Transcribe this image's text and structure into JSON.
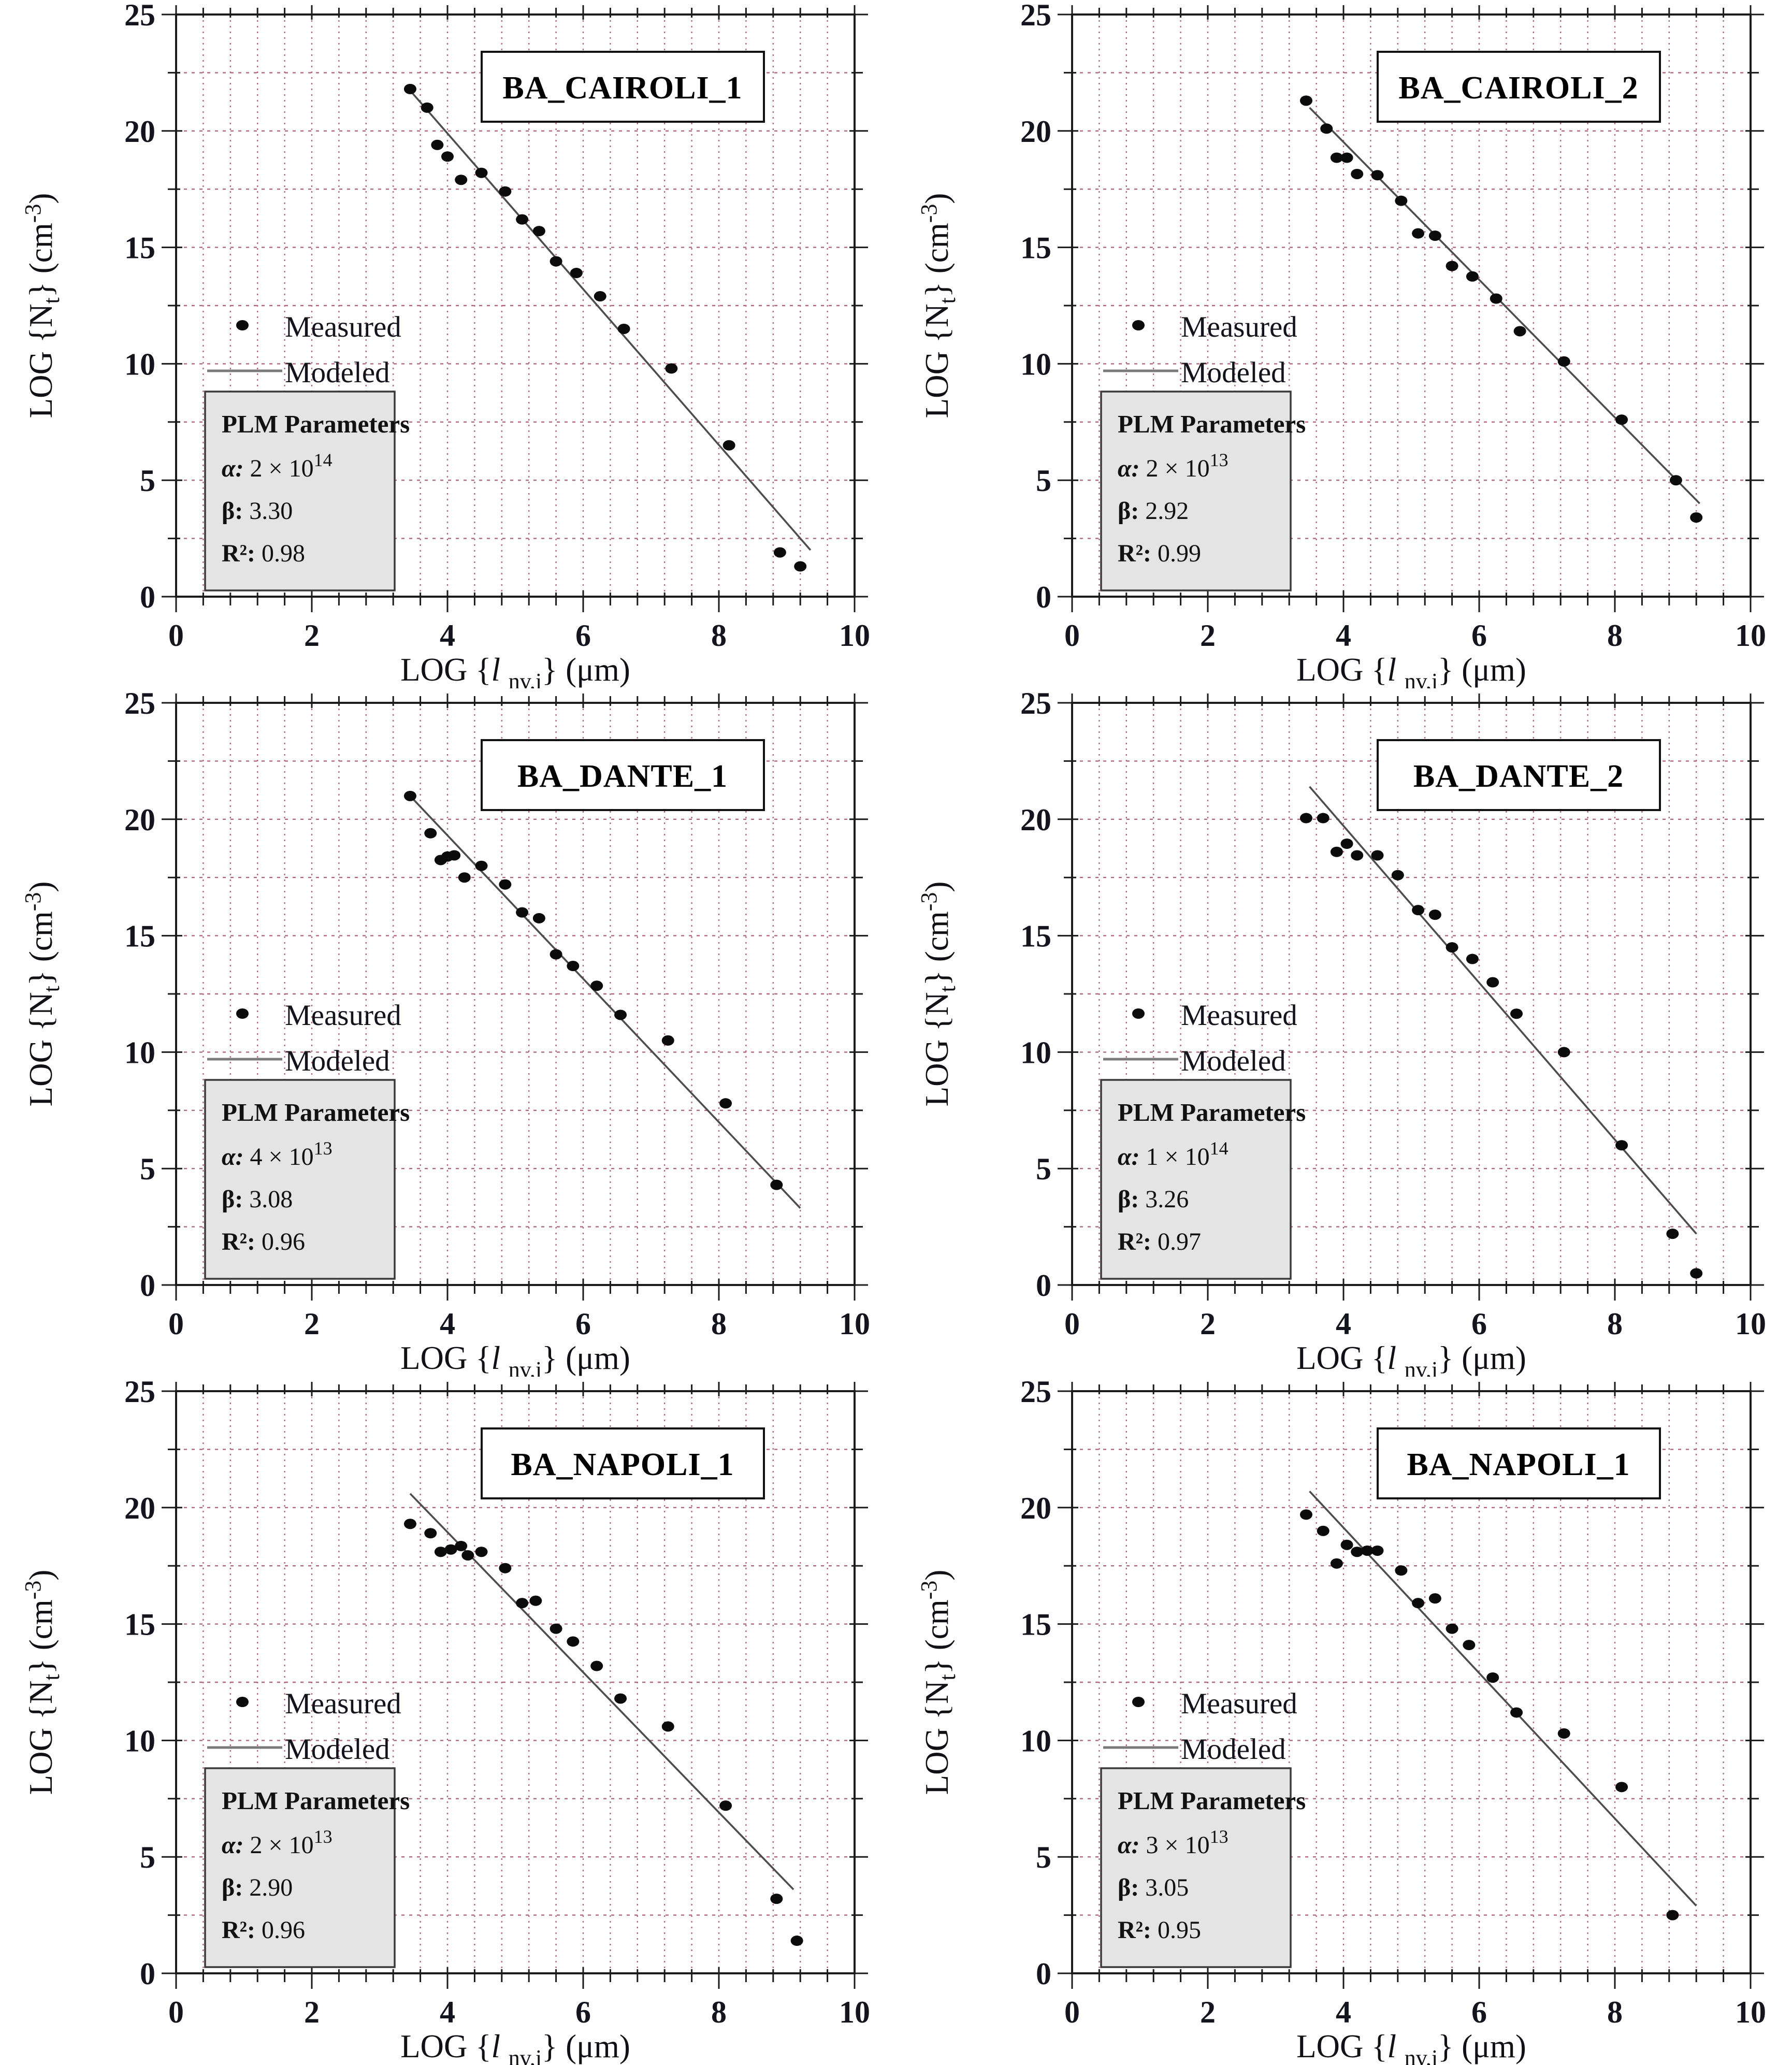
{
  "figure": {
    "background": "#ffffff",
    "rows": 3,
    "cols": 2
  },
  "axes": {
    "x": {
      "min": 0,
      "max": 10,
      "major_ticks": [
        0,
        2,
        4,
        6,
        8,
        10
      ],
      "minor_step": 0.4,
      "grid_step": 0.4,
      "label": {
        "pre": "LOG {",
        "var": "l ",
        "sub": "nv,i",
        "post": "}",
        "unit": "   (μm)"
      }
    },
    "y": {
      "min": 0,
      "max": 25,
      "major_ticks": [
        0,
        5,
        10,
        15,
        20,
        25
      ],
      "minor_step": 2.5,
      "grid_step": 2.5,
      "label": {
        "pre": "LOG {N",
        "sub": "t",
        "post": "}",
        "unit_pre": "   (cm",
        "sup": "-3",
        "unit_post": ")"
      }
    },
    "grid_color": "#A34D6D",
    "grid_style": "dotted",
    "axis_color": "#1b1b1b"
  },
  "legend": {
    "measured": "Measured",
    "modeled": "Modeled"
  },
  "plm_header": "PLM Parameters",
  "param_labels": {
    "alpha": "α:",
    "beta": "β:",
    "r2": "R²:"
  },
  "colors": {
    "point": "#0b0b0b",
    "model_line": "#4d4d4d",
    "legend_line": "#7a7a7a",
    "plm_box_fill": "#e4e4e4",
    "plm_box_stroke": "#3a3a3a",
    "title_box_fill": "#ffffff",
    "title_box_stroke": "#111111"
  },
  "chart_data": [
    {
      "type": "scatter",
      "title": "BA_CAIROLI_1",
      "xlabel": "LOG {l nv,i} (μm)",
      "ylabel": "LOG {Nt} (cm⁻³)",
      "xlim": [
        0,
        10
      ],
      "ylim": [
        0,
        25
      ],
      "legend_position": "middle-left",
      "series": [
        {
          "name": "Measured",
          "type": "scatter",
          "points": [
            [
              3.45,
              21.8
            ],
            [
              3.7,
              21.0
            ],
            [
              3.85,
              19.4
            ],
            [
              4.0,
              18.9
            ],
            [
              4.2,
              17.9
            ],
            [
              4.5,
              18.2
            ],
            [
              4.85,
              17.4
            ],
            [
              5.1,
              16.2
            ],
            [
              5.35,
              15.7
            ],
            [
              5.6,
              14.4
            ],
            [
              5.9,
              13.9
            ],
            [
              6.25,
              12.9
            ],
            [
              6.6,
              11.5
            ],
            [
              7.3,
              9.8
            ],
            [
              8.15,
              6.5
            ],
            [
              8.9,
              1.9
            ],
            [
              9.2,
              1.3
            ]
          ]
        },
        {
          "name": "Modeled",
          "type": "line",
          "points": [
            [
              3.4,
              21.9
            ],
            [
              9.35,
              2.0
            ]
          ]
        }
      ],
      "plm": {
        "alpha_coef": " 2 × 10",
        "alpha_exp": "14",
        "beta": " 3.30",
        "r2": " 0.98"
      }
    },
    {
      "type": "scatter",
      "title": "BA_CAIROLI_2",
      "xlabel": "LOG {l nv,i} (μm)",
      "ylabel": "LOG {Nt} (cm⁻³)",
      "xlim": [
        0,
        10
      ],
      "ylim": [
        0,
        25
      ],
      "legend_position": "middle-left",
      "series": [
        {
          "name": "Measured",
          "type": "scatter",
          "points": [
            [
              3.45,
              21.3
            ],
            [
              3.75,
              20.1
            ],
            [
              3.9,
              18.85
            ],
            [
              4.05,
              18.85
            ],
            [
              4.2,
              18.15
            ],
            [
              4.5,
              18.1
            ],
            [
              4.85,
              17.0
            ],
            [
              5.1,
              15.6
            ],
            [
              5.35,
              15.5
            ],
            [
              5.6,
              14.2
            ],
            [
              5.9,
              13.75
            ],
            [
              6.25,
              12.8
            ],
            [
              6.6,
              11.4
            ],
            [
              7.25,
              10.1
            ],
            [
              8.1,
              7.6
            ],
            [
              8.9,
              5.0
            ],
            [
              9.2,
              3.4
            ]
          ]
        },
        {
          "name": "Modeled",
          "type": "line",
          "points": [
            [
              3.5,
              21.0
            ],
            [
              9.25,
              4.0
            ]
          ]
        }
      ],
      "plm": {
        "alpha_coef": " 2 × 10",
        "alpha_exp": "13",
        "beta": " 2.92",
        "r2": " 0.99"
      }
    },
    {
      "type": "scatter",
      "title": "BA_DANTE_1",
      "xlabel": "LOG {l nv,i} (μm)",
      "ylabel": "LOG {Nt} (cm⁻³)",
      "xlim": [
        0,
        10
      ],
      "ylim": [
        0,
        25
      ],
      "legend_position": "middle-left",
      "series": [
        {
          "name": "Measured",
          "type": "scatter",
          "points": [
            [
              3.45,
              21.0
            ],
            [
              3.75,
              19.4
            ],
            [
              3.9,
              18.25
            ],
            [
              4.0,
              18.4
            ],
            [
              4.1,
              18.45
            ],
            [
              4.25,
              17.5
            ],
            [
              4.5,
              18.0
            ],
            [
              4.85,
              17.2
            ],
            [
              5.1,
              16.0
            ],
            [
              5.35,
              15.75
            ],
            [
              5.6,
              14.2
            ],
            [
              5.85,
              13.7
            ],
            [
              6.2,
              12.85
            ],
            [
              6.55,
              11.6
            ],
            [
              7.25,
              10.5
            ],
            [
              8.1,
              7.8
            ],
            [
              8.85,
              4.3
            ]
          ]
        },
        {
          "name": "Modeled",
          "type": "line",
          "points": [
            [
              3.45,
              21.0
            ],
            [
              9.2,
              3.3
            ]
          ]
        }
      ],
      "plm": {
        "alpha_coef": " 4 × 10",
        "alpha_exp": "13",
        "beta": " 3.08",
        "r2": " 0.96"
      }
    },
    {
      "type": "scatter",
      "title": "BA_DANTE_2",
      "xlabel": "LOG {l nv,i} (μm)",
      "ylabel": "LOG {Nt} (cm⁻³)",
      "xlim": [
        0,
        10
      ],
      "ylim": [
        0,
        25
      ],
      "legend_position": "middle-left",
      "series": [
        {
          "name": "Measured",
          "type": "scatter",
          "points": [
            [
              3.45,
              20.05
            ],
            [
              3.7,
              20.05
            ],
            [
              3.9,
              18.6
            ],
            [
              4.05,
              18.95
            ],
            [
              4.2,
              18.45
            ],
            [
              4.5,
              18.45
            ],
            [
              4.8,
              17.6
            ],
            [
              5.1,
              16.1
            ],
            [
              5.35,
              15.9
            ],
            [
              5.6,
              14.5
            ],
            [
              5.9,
              14.0
            ],
            [
              6.2,
              13.0
            ],
            [
              6.55,
              11.65
            ],
            [
              7.25,
              10.0
            ],
            [
              8.1,
              6.0
            ],
            [
              8.85,
              2.2
            ],
            [
              9.2,
              0.5
            ]
          ]
        },
        {
          "name": "Modeled",
          "type": "line",
          "points": [
            [
              3.5,
              21.4
            ],
            [
              9.2,
              2.2
            ]
          ]
        }
      ],
      "plm": {
        "alpha_coef": " 1 × 10",
        "alpha_exp": "14",
        "beta": " 3.26",
        "r2": " 0.97"
      }
    },
    {
      "type": "scatter",
      "title": "BA_NAPOLI_1",
      "xlabel": "LOG {l nv,i} (μm)",
      "ylabel": "LOG {Nt} (cm⁻³)",
      "xlim": [
        0,
        10
      ],
      "ylim": [
        0,
        25
      ],
      "legend_position": "middle-left",
      "series": [
        {
          "name": "Measured",
          "type": "scatter",
          "points": [
            [
              3.45,
              19.3
            ],
            [
              3.75,
              18.9
            ],
            [
              3.9,
              18.1
            ],
            [
              4.05,
              18.2
            ],
            [
              4.2,
              18.35
            ],
            [
              4.3,
              17.95
            ],
            [
              4.5,
              18.1
            ],
            [
              4.85,
              17.4
            ],
            [
              5.1,
              15.9
            ],
            [
              5.3,
              16.0
            ],
            [
              5.6,
              14.8
            ],
            [
              5.85,
              14.25
            ],
            [
              6.2,
              13.2
            ],
            [
              6.55,
              11.8
            ],
            [
              7.25,
              10.6
            ],
            [
              8.1,
              7.2
            ],
            [
              8.85,
              3.2
            ],
            [
              9.15,
              1.4
            ]
          ]
        },
        {
          "name": "Modeled",
          "type": "line",
          "points": [
            [
              3.45,
              20.6
            ],
            [
              9.1,
              3.6
            ]
          ]
        }
      ],
      "plm": {
        "alpha_coef": " 2 × 10",
        "alpha_exp": "13",
        "beta": " 2.90",
        "r2": " 0.96"
      }
    },
    {
      "type": "scatter",
      "title": "BA_NAPOLI_1",
      "xlabel": "LOG {l nv,i} (μm)",
      "ylabel": "LOG {Nt} (cm⁻³)",
      "xlim": [
        0,
        10
      ],
      "ylim": [
        0,
        25
      ],
      "legend_position": "middle-left",
      "series": [
        {
          "name": "Measured",
          "type": "scatter",
          "points": [
            [
              3.45,
              19.7
            ],
            [
              3.7,
              19.0
            ],
            [
              3.9,
              17.6
            ],
            [
              4.05,
              18.4
            ],
            [
              4.2,
              18.1
            ],
            [
              4.35,
              18.15
            ],
            [
              4.5,
              18.15
            ],
            [
              4.85,
              17.3
            ],
            [
              5.1,
              15.9
            ],
            [
              5.35,
              16.1
            ],
            [
              5.6,
              14.8
            ],
            [
              5.85,
              14.1
            ],
            [
              6.2,
              12.7
            ],
            [
              6.55,
              11.2
            ],
            [
              7.25,
              10.3
            ],
            [
              8.1,
              8.0
            ],
            [
              8.85,
              2.5
            ]
          ]
        },
        {
          "name": "Modeled",
          "type": "line",
          "points": [
            [
              3.5,
              20.7
            ],
            [
              9.2,
              2.9
            ]
          ]
        }
      ],
      "plm": {
        "alpha_coef": " 3 × 10",
        "alpha_exp": "13",
        "beta": " 3.05",
        "r2": " 0.95"
      }
    }
  ]
}
